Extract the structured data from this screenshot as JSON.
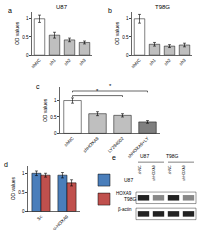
{
  "chart_data": [
    {
      "type": "bar",
      "panel": "a",
      "title": "U87",
      "y_label": "OD values",
      "categories": [
        "shNC",
        "sh1",
        "sh2",
        "sh3"
      ],
      "values": [
        1.0,
        0.55,
        0.42,
        0.35
      ],
      "errors": [
        0.1,
        0.08,
        0.05,
        0.04
      ],
      "colors": [
        "#ffffff",
        "#bfbfbf",
        "#bfbfbf",
        "#bfbfbf"
      ],
      "ylim": [
        0,
        1.2
      ],
      "yticks": [
        0,
        0.5,
        1
      ],
      "grid": false
    },
    {
      "type": "bar",
      "panel": "b",
      "title": "T98G",
      "y_label": "OD values",
      "categories": [
        "shNC",
        "sh1",
        "sh2",
        "sh3"
      ],
      "values": [
        1.0,
        0.3,
        0.25,
        0.28
      ],
      "errors": [
        0.12,
        0.05,
        0.04,
        0.05
      ],
      "colors": [
        "#ffffff",
        "#bfbfbf",
        "#bfbfbf",
        "#bfbfbf"
      ],
      "ylim": [
        0,
        1.2
      ],
      "yticks": [
        0,
        0.5,
        1
      ],
      "grid": false
    },
    {
      "type": "bar",
      "panel": "c",
      "y_label": "OD values",
      "categories": [
        "shNC",
        "shHOXA9",
        "LY294002",
        "shHOXA9+LY"
      ],
      "values": [
        1.0,
        0.6,
        0.55,
        0.35
      ],
      "errors": [
        0.08,
        0.06,
        0.05,
        0.04
      ],
      "colors": [
        "#ffffff",
        "#bfbfbf",
        "#bfbfbf",
        "#7f7f7f"
      ],
      "ylim": [
        0,
        1.4
      ],
      "yticks": [
        0,
        0.5,
        1
      ],
      "grid": false,
      "annotations": [
        {
          "from": 0,
          "to": 2,
          "label": "*"
        },
        {
          "from": 0,
          "to": 3,
          "label": "*"
        }
      ]
    },
    {
      "type": "bar",
      "panel": "d",
      "y_label": "OD values",
      "categories": [
        "Sc",
        "si-HOXA9"
      ],
      "series": [
        {
          "name": "U87",
          "color": "#4a7ebb",
          "values": [
            1.0,
            0.95
          ],
          "errors": [
            0.06,
            0.07
          ]
        },
        {
          "name": "T98G",
          "color": "#c0504d",
          "values": [
            0.95,
            0.75
          ],
          "errors": [
            0.05,
            0.08
          ]
        }
      ],
      "ylim": [
        0,
        1.2
      ],
      "yticks": [
        0,
        0.5,
        1
      ],
      "grid": false,
      "legend": "right"
    }
  ],
  "blot": {
    "panel": "e",
    "groups": [
      {
        "name": "U87",
        "lanes": [
          "shNC",
          "shHOXA9"
        ]
      },
      {
        "name": "T98G",
        "lanes": [
          "shNC",
          "shHOXA9"
        ]
      }
    ],
    "rows": [
      "HOXA9",
      "β-actin"
    ]
  }
}
